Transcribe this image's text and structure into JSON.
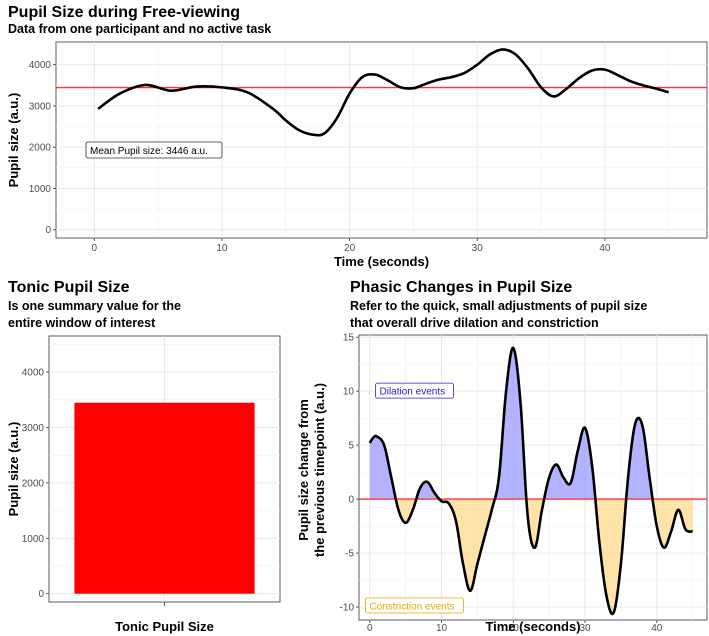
{
  "chart_data": [
    {
      "id": "top",
      "type": "line",
      "title": "Pupil Size during Free-viewing",
      "subtitle": "Data from one participant and no active task",
      "xlabel": "Time (seconds)",
      "ylabel": "Pupil size (a.u.)",
      "xlim": [
        -3,
        48
      ],
      "ylim": [
        -200,
        4550
      ],
      "x_ticks": [
        0,
        10,
        20,
        30,
        40
      ],
      "y_ticks": [
        0,
        1000,
        2000,
        3000,
        4000
      ],
      "grid": true,
      "series": [
        {
          "x": [
            0.3,
            2,
            4,
            6,
            8,
            10,
            12,
            14,
            15,
            16,
            17,
            18,
            19,
            20,
            21,
            22,
            23,
            24,
            25,
            26,
            27,
            28,
            29,
            30,
            31,
            32,
            33,
            34,
            35,
            36,
            37,
            38,
            39,
            40,
            41,
            42,
            43,
            44,
            45
          ],
          "y": [
            2930,
            3300,
            3510,
            3370,
            3470,
            3450,
            3330,
            2930,
            2650,
            2420,
            2310,
            2330,
            2700,
            3300,
            3700,
            3760,
            3620,
            3450,
            3430,
            3540,
            3640,
            3700,
            3800,
            4000,
            4250,
            4370,
            4250,
            3900,
            3450,
            3230,
            3420,
            3680,
            3860,
            3880,
            3750,
            3600,
            3500,
            3420,
            3330
          ],
          "color": "#000000"
        }
      ],
      "mean_line": {
        "value": 3446,
        "color": "#ff3333"
      },
      "annotation": "Mean Pupil size: 3446 a.u."
    },
    {
      "id": "tonic",
      "type": "bar",
      "title": "Tonic Pupil Size",
      "subtitle": "Is one summary value for the entire window of interest",
      "subtitle_lines": [
        "Is one summary value for the",
        "entire window of interest"
      ],
      "xlabel": "Tonic Pupil Size",
      "ylabel": "Pupil size (a.u.)",
      "ylim": [
        -150,
        4650
      ],
      "y_ticks": [
        0,
        1000,
        2000,
        3000,
        4000
      ],
      "categories": [
        ""
      ],
      "values": [
        3446
      ],
      "color": "#ff0000",
      "grid": true
    },
    {
      "id": "phasic",
      "type": "area",
      "title": "Phasic Changes in Pupil Size",
      "subtitle": "Refer to the quick, small adjustments of pupil size that overall drive dilation and constriction",
      "subtitle_lines": [
        "Refer to the quick, small adjustments of pupil size",
        "that overall drive dilation and constriction"
      ],
      "xlabel": "Time (seconds)",
      "ylabel": "Pupil size change from the previous timepoint (a.u.)",
      "ylabel_lines": [
        "Pupil size change from",
        "the previous timepoint (a.u.)"
      ],
      "xlim": [
        -1.5,
        47
      ],
      "ylim": [
        -11.2,
        15.2
      ],
      "x_ticks": [
        0,
        10,
        20,
        30,
        40
      ],
      "y_ticks": [
        -10,
        -5,
        0,
        5,
        10,
        15
      ],
      "grid": true,
      "series": [
        {
          "x": [
            0,
            0.5,
            1,
            2,
            3,
            4,
            5,
            6,
            7,
            8,
            9,
            10,
            11,
            12,
            13,
            14,
            15,
            16,
            17,
            18,
            19,
            20,
            21,
            22,
            23,
            24,
            25,
            26,
            27,
            28,
            29,
            30,
            31,
            32,
            33,
            34,
            35,
            36,
            37,
            38,
            39,
            40,
            41,
            42,
            43,
            44,
            45
          ],
          "y": [
            5.2,
            5.7,
            5.8,
            5.0,
            2.0,
            -1.0,
            -2.2,
            -1.0,
            1.0,
            1.6,
            0.6,
            -0.2,
            -0.4,
            -2.0,
            -6.0,
            -8.5,
            -6.0,
            -3.5,
            -1.0,
            2.0,
            10.0,
            14.0,
            9.0,
            -1.5,
            -4.5,
            -1.0,
            2.0,
            3.2,
            2.0,
            1.5,
            4.5,
            6.6,
            3.0,
            -4.0,
            -9.0,
            -10.5,
            -6.0,
            2.0,
            7.0,
            6.8,
            2.0,
            -2.5,
            -4.5,
            -3.0,
            -1.0,
            -2.8,
            -3.0
          ],
          "color": "#000000"
        }
      ],
      "zero_line": {
        "value": 0,
        "color": "#ff3333"
      },
      "positive_fill": "#9999ff",
      "negative_fill": "#ffd98c",
      "annotations": {
        "dilation": {
          "text": "Dilation events",
          "color": "#2222cc",
          "x": 0.8,
          "y": 10.0
        },
        "constriction": {
          "text": "Constriction events",
          "color": "#e6a800",
          "x": -0.6,
          "y": -9.9
        }
      }
    }
  ]
}
